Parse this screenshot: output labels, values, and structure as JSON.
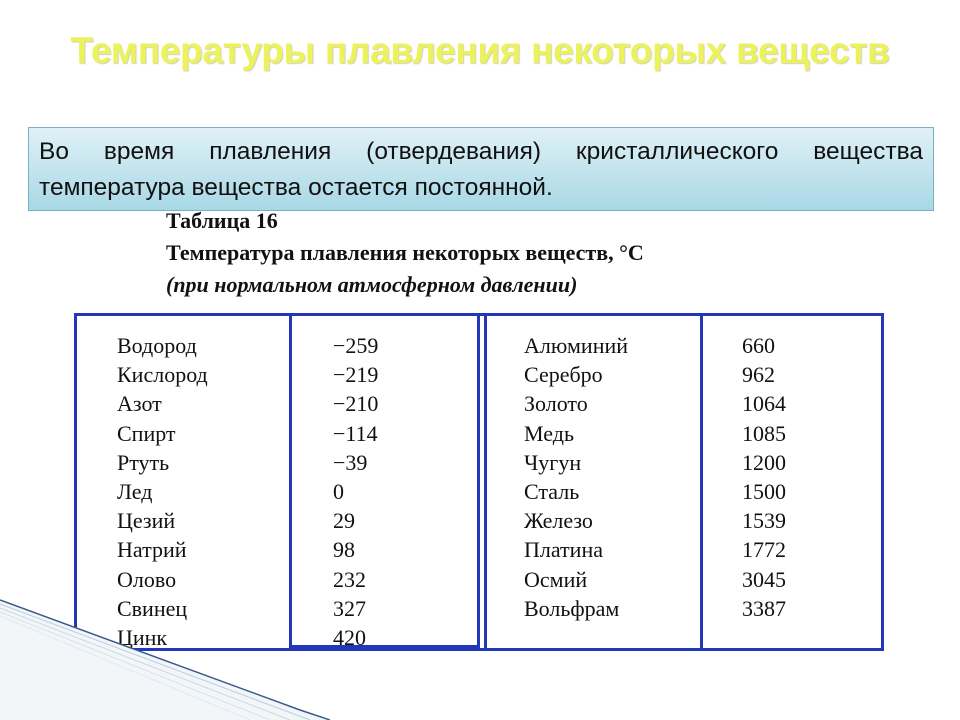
{
  "title": "Температуры плавления некоторых веществ",
  "info": {
    "line1_words": [
      "Во",
      "время",
      "плавления",
      "(отвердевания)",
      "кристаллического",
      "вещества"
    ],
    "line2": "температура вещества остается постоянной."
  },
  "table_caption": {
    "number": "Таблица 16",
    "title": "Температура плавления некоторых веществ, °С",
    "note": "(при нормальном атмосферном давлении)"
  },
  "table": {
    "left": [
      {
        "name": "Водород",
        "value": "−259"
      },
      {
        "name": "Кислород",
        "value": "−219"
      },
      {
        "name": "Азот",
        "value": "−210"
      },
      {
        "name": "Спирт",
        "value": "−114"
      },
      {
        "name": "Ртуть",
        "value": "−39"
      },
      {
        "name": "Лед",
        "value": "0"
      },
      {
        "name": "Цезий",
        "value": "29"
      },
      {
        "name": "Натрий",
        "value": "98"
      },
      {
        "name": "Олово",
        "value": "232"
      },
      {
        "name": "Свинец",
        "value": "327"
      },
      {
        "name": "Цинк",
        "value": "420"
      }
    ],
    "right": [
      {
        "name": "Алюминий",
        "value": "660"
      },
      {
        "name": "Серебро",
        "value": "962"
      },
      {
        "name": "Золото",
        "value": "1064"
      },
      {
        "name": "Медь",
        "value": "1085"
      },
      {
        "name": "Чугун",
        "value": "1200"
      },
      {
        "name": "Сталь",
        "value": "1500"
      },
      {
        "name": "Железо",
        "value": "1539"
      },
      {
        "name": "Платина",
        "value": "1772"
      },
      {
        "name": "Осмий",
        "value": "3045"
      },
      {
        "name": "Вольфрам",
        "value": "3387"
      }
    ]
  },
  "colors": {
    "title": "#ecf25a",
    "table_border": "#2236b8",
    "info_box": "#a8d8e6"
  }
}
